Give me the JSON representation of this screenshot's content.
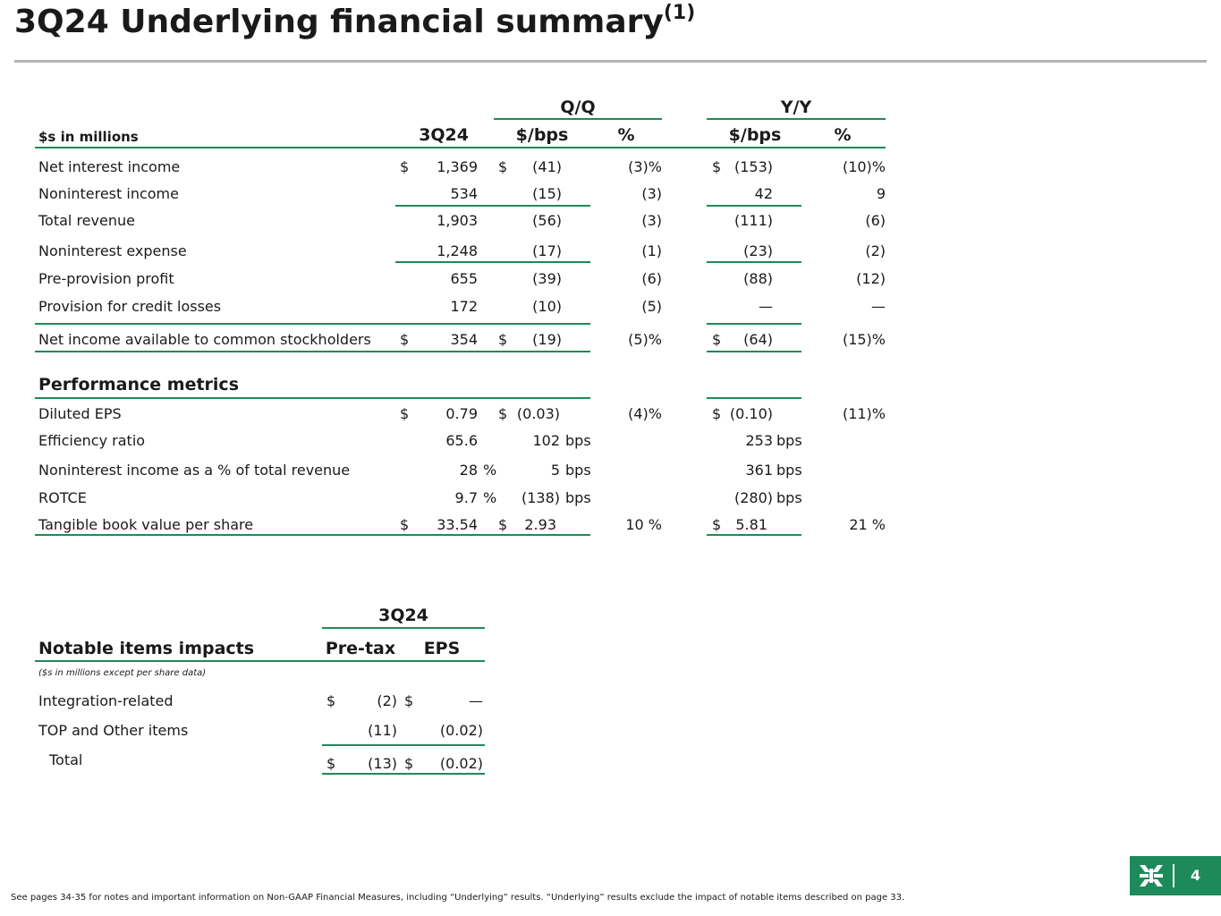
{
  "title": {
    "main": "3Q24 Underlying financial summary",
    "sup": "(1)"
  },
  "summary_table": {
    "unit_label": "$s in millions",
    "col_3q24": "3Q24",
    "group_qq": "Q/Q",
    "group_yy": "Y/Y",
    "col_qq_bps": "$/bps",
    "col_qq_pct": "%",
    "col_yy_bps": "$/bps",
    "col_yy_pct": "%",
    "rows": [
      {
        "label": "Net interest income",
        "cur_sym": "$",
        "cur": "1,369",
        "qq_sym": "$",
        "qq": "(41)",
        "qq_pct": "(3)%",
        "yy_sym": "$",
        "yy": "(153)",
        "yy_pct": "(10)%"
      },
      {
        "label": "Noninterest income",
        "cur_sym": "",
        "cur": "534",
        "qq_sym": "",
        "qq": "(15)",
        "qq_pct": "(3)",
        "yy_sym": "",
        "yy": "42",
        "yy_pct": "9"
      },
      {
        "label": "Total revenue",
        "cur_sym": "",
        "cur": "1,903",
        "qq_sym": "",
        "qq": "(56)",
        "qq_pct": "(3)",
        "yy_sym": "",
        "yy": "(111)",
        "yy_pct": "(6)"
      },
      {
        "label": "Noninterest expense",
        "cur_sym": "",
        "cur": "1,248",
        "qq_sym": "",
        "qq": "(17)",
        "qq_pct": "(1)",
        "yy_sym": "",
        "yy": "(23)",
        "yy_pct": "(2)"
      },
      {
        "label": "Pre-provision profit",
        "cur_sym": "",
        "cur": "655",
        "qq_sym": "",
        "qq": "(39)",
        "qq_pct": "(6)",
        "yy_sym": "",
        "yy": "(88)",
        "yy_pct": "(12)"
      },
      {
        "label": "Provision for credit losses",
        "cur_sym": "",
        "cur": "172",
        "qq_sym": "",
        "qq": "(10)",
        "qq_pct": "(5)",
        "yy_sym": "",
        "yy": "—",
        "yy_pct": "—"
      },
      {
        "label": "Net income available to common stockholders",
        "cur_sym": "$",
        "cur": "354",
        "qq_sym": "$",
        "qq": "(19)",
        "qq_pct": "(5)%",
        "yy_sym": "$",
        "yy": "(64)",
        "yy_pct": "(15)%"
      }
    ]
  },
  "performance": {
    "heading": "Performance metrics",
    "rows": [
      {
        "label": "Diluted EPS",
        "cur_sym": "$",
        "cur": "0.79",
        "cur_unit": "",
        "qq_sym": "$",
        "qq": "(0.03)",
        "qq_unit": "",
        "qq_pct": "(4)%",
        "yy_sym": "$",
        "yy": "(0.10)",
        "yy_unit": "",
        "yy_pct": "(11)%"
      },
      {
        "label": "Efficiency ratio",
        "cur_sym": "",
        "cur": "65.6",
        "cur_unit": "",
        "qq_sym": "",
        "qq": "102",
        "qq_unit": "bps",
        "qq_pct": "",
        "yy_sym": "",
        "yy": "253",
        "yy_unit": "bps",
        "yy_pct": ""
      },
      {
        "label": "Noninterest income as a % of total revenue",
        "cur_sym": "",
        "cur": "28",
        "cur_unit": "%",
        "qq_sym": "",
        "qq": "5",
        "qq_unit": "bps",
        "qq_pct": "",
        "yy_sym": "",
        "yy": "361",
        "yy_unit": "bps",
        "yy_pct": ""
      },
      {
        "label": "ROTCE",
        "cur_sym": "",
        "cur": "9.7",
        "cur_unit": "%",
        "qq_sym": "",
        "qq": "(138)",
        "qq_unit": "bps",
        "qq_pct": "",
        "yy_sym": "",
        "yy": "(280)",
        "yy_unit": "bps",
        "yy_pct": ""
      },
      {
        "label": "Tangible book value per share",
        "cur_sym": "$",
        "cur": "33.54",
        "cur_unit": "",
        "qq_sym": "$",
        "qq": "2.93",
        "qq_unit": "",
        "qq_pct": "10 %",
        "yy_sym": "$",
        "yy": "5.81",
        "yy_unit": "",
        "yy_pct": "21 %"
      }
    ]
  },
  "notable": {
    "heading": "Notable items impacts",
    "col_group": "3Q24",
    "col_pretax": "Pre-tax",
    "col_eps": "EPS",
    "unit_note": "($s in millions except per share data)",
    "rows": [
      {
        "label": "Integration-related",
        "pt_sym": "$",
        "pretax": "(2)",
        "eps_sym": "$",
        "eps": "—"
      },
      {
        "label": "TOP and Other items",
        "pt_sym": "",
        "pretax": "(11)",
        "eps_sym": "",
        "eps": "(0.02)"
      },
      {
        "label": "Total",
        "pt_sym": "$",
        "pretax": "(13)",
        "eps_sym": "$",
        "eps": "(0.02)"
      }
    ]
  },
  "footnote": "See pages 34-35 for notes and important information on Non-GAAP Financial Measures, including “Underlying” results. “Underlying” results exclude the impact of notable items described on page 33.",
  "page_number": "4",
  "colors": {
    "accent": "#1d8a5a",
    "title_rule": "#b3b3b3"
  },
  "logo_icon": "citizens-logo-icon"
}
